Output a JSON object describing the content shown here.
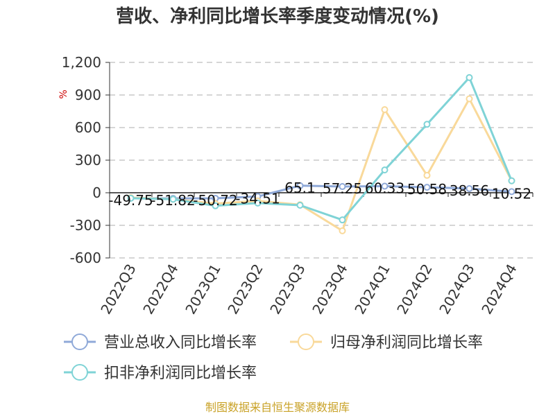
{
  "chart_data": {
    "type": "line",
    "title": "营收、净利同比增长率季度变动情况(%)",
    "unit": "%",
    "categories": [
      "2022Q3",
      "2022Q4",
      "2023Q1",
      "2023Q2",
      "2023Q3",
      "2023Q4",
      "2024Q1",
      "2024Q2",
      "2024Q3",
      "2024Q4"
    ],
    "ylim": [
      -600,
      1200
    ],
    "yticks": [
      -600,
      -300,
      0,
      300,
      600,
      900,
      1200
    ],
    "ytick_labels": [
      "-600",
      "-300",
      "0",
      "300",
      "600",
      "900",
      "1,200"
    ],
    "grid": true,
    "legend_position": "bottom",
    "series": [
      {
        "name": "营业总收入同比增长率",
        "color": "#8fa9d8",
        "values": [
          -49.75,
          -51.82,
          -50.72,
          -34.51,
          65.1,
          57.25,
          60.33,
          50.58,
          38.56,
          10.52
        ],
        "labels": [
          "-49.75",
          "-51.82",
          "-50.72",
          "-34.51",
          "65.1",
          "57.25",
          "60.33",
          "50.58",
          "38.56",
          "10.52"
        ]
      },
      {
        "name": "归母净利润同比增长率",
        "color": "#f9d99a",
        "values": [
          -45,
          -60,
          -100,
          -75,
          -110,
          -350,
          765,
          160,
          865,
          110
        ]
      },
      {
        "name": "扣非净利润同比增长率",
        "color": "#7fd3d6",
        "values": [
          -50,
          -60,
          -120,
          -95,
          -115,
          -250,
          210,
          630,
          1060,
          110
        ]
      }
    ]
  },
  "source": "制图数据来自恒生聚源数据库"
}
